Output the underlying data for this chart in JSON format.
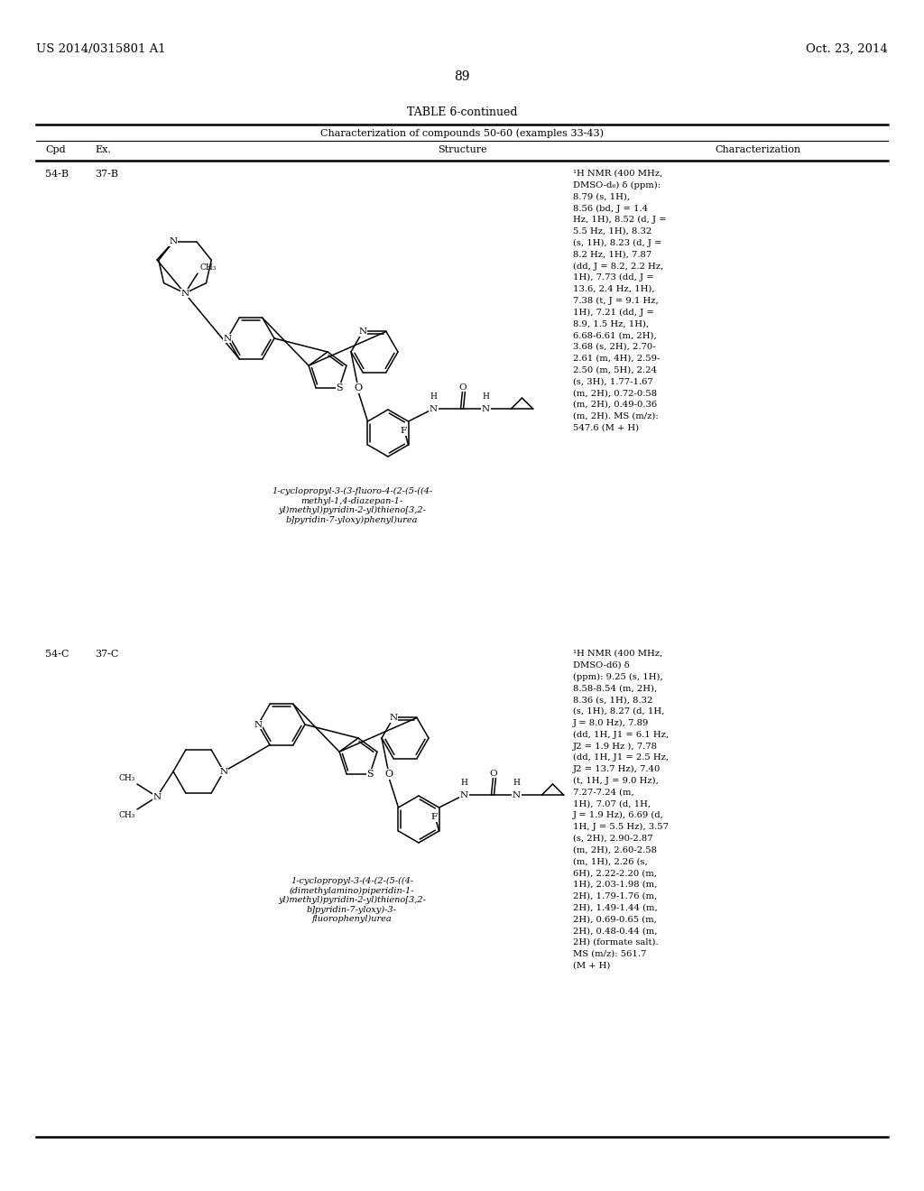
{
  "bg_color": "#ffffff",
  "page_width": 10.24,
  "page_height": 13.2,
  "header_left": "US 2014/0315801 A1",
  "header_right": "Oct. 23, 2014",
  "page_number": "89",
  "table_title": "TABLE 6-continued",
  "table_subtitle": "Characterization of compounds 50-60 (examples 33-43)",
  "col_headers": [
    "Cpd",
    "Ex.",
    "Structure",
    "Characterization"
  ],
  "row1_cpd": "54-B",
  "row1_ex": "37-B",
  "row1_name": "1-cyclopropyl-3-(3-fluoro-4-(2-(5-((4-\nmethyl-1,4-diazepan-1-\nyl)methyl)pyridin-2-yl)thieno[3,2-\nb]pyridin-7-yloxy)phenyl)urea",
  "row1_char_lines": [
    "¹H NMR (400 MHz,",
    "DMSO-d₆) δ (ppm):",
    "8.79 (s, 1H),",
    "8.56 (bd, J = 1.4",
    "Hz, 1H), 8.52 (d, J =",
    "5.5 Hz, 1H), 8.32",
    "(s, 1H), 8.23 (d, J =",
    "8.2 Hz, 1H), 7.87",
    "(dd, J = 8.2, 2.2 Hz,",
    "1H), 7.73 (dd, J =",
    "13.6, 2.4 Hz, 1H),",
    "7.38 (t, J = 9.1 Hz,",
    "1H), 7.21 (dd, J =",
    "8.9, 1.5 Hz, 1H),",
    "6.68-6.61 (m, 2H),",
    "3.68 (s, 2H), 2.70-",
    "2.61 (m, 4H), 2.59-",
    "2.50 (m, 5H), 2.24",
    "(s, 3H), 1.77-1.67",
    "(m, 2H), 0.72-0.58",
    "(m, 2H), 0.49-0.36",
    "(m, 2H). MS (m/z):",
    "547.6 (M + H)"
  ],
  "row2_cpd": "54-C",
  "row2_ex": "37-C",
  "row2_name": "1-cyclopropyl-3-(4-(2-(5-((4-\n(dimethylamino)piperidin-1-\nyl)methyl)pyridin-2-yl)thieno[3,2-\nb]pyridin-7-yloxy)-3-\nfluorophenyl)urea",
  "row2_char_lines": [
    "¹H NMR (400 MHz,",
    "DMSO-d6) δ",
    "(ppm): 9.25 (s, 1H),",
    "8.58-8.54 (m, 2H),",
    "8.36 (s, 1H), 8.32",
    "(s, 1H), 8.27 (d, 1H,",
    "J = 8.0 Hz), 7.89",
    "(dd, 1H, J1 = 6.1 Hz,",
    "J2 = 1.9 Hz ), 7.78",
    "(dd, 1H, J1 = 2.5 Hz,",
    "J2 = 13.7 Hz), 7.40",
    "(t, 1H, J = 9.0 Hz),",
    "7.27-7.24 (m,",
    "1H), 7.07 (d, 1H,",
    "J = 1.9 Hz), 6.69 (d,",
    "1H, J = 5.5 Hz), 3.57",
    "(s, 2H), 2.90-2.87",
    "(m, 2H), 2.60-2.58",
    "(m, 1H), 2.26 (s,",
    "6H), 2.22-2.20 (m,",
    "1H), 2.03-1.98 (m,",
    "2H), 1.79-1.76 (m,",
    "2H), 1.49-1.44 (m,",
    "2H), 0.69-0.65 (m,",
    "2H), 0.48-0.44 (m,",
    "2H) (formate salt).",
    "MS (m/z): 561.7",
    "(M + H)"
  ]
}
